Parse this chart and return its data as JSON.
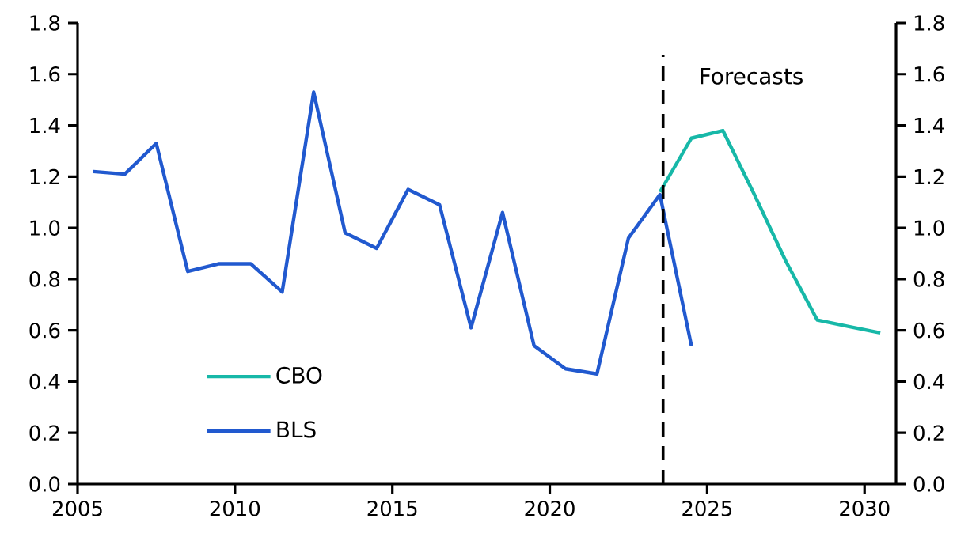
{
  "chart_data": {
    "type": "line",
    "series": [
      {
        "name": "CBO",
        "color": "#17b8a8",
        "x": [
          2023.5,
          2024.5,
          2025.5,
          2026.5,
          2027.5,
          2028.5,
          2029.5,
          2030.5
        ],
        "values": [
          1.14,
          1.35,
          1.38,
          1.13,
          0.87,
          0.64,
          0.615,
          0.59
        ]
      },
      {
        "name": "BLS",
        "color": "#2159cf",
        "x": [
          2005.5,
          2006.5,
          2007.5,
          2008.5,
          2009.5,
          2010.5,
          2011.5,
          2012.5,
          2013.5,
          2014.5,
          2015.5,
          2016.5,
          2017.5,
          2018.5,
          2019.5,
          2020.5,
          2021.5,
          2022.5,
          2023.5,
          2024.5
        ],
        "values": [
          1.22,
          1.21,
          1.33,
          0.83,
          0.86,
          0.86,
          0.75,
          1.53,
          0.98,
          0.92,
          1.15,
          1.09,
          0.61,
          1.06,
          0.54,
          0.45,
          0.43,
          0.96,
          1.13,
          0.54
        ]
      }
    ],
    "xlim": [
      2005,
      2031
    ],
    "xticks": [
      2005,
      2010,
      2015,
      2020,
      2025,
      2030
    ],
    "ylim": [
      0,
      1.8
    ],
    "yticks": [
      {
        "value": 0,
        "label": "0.0"
      },
      0.2,
      0.4,
      0.6,
      0.8,
      {
        "value": 1,
        "label": "1.0"
      },
      1.2,
      1.4,
      1.6,
      1.8
    ],
    "y2lim": [
      0,
      1.8
    ],
    "y2ticks": [
      {
        "value": 0,
        "label": "0.0"
      },
      0.2,
      0.4,
      0.6,
      0.8,
      {
        "value": 1,
        "label": "1.0"
      },
      1.2,
      1.4,
      1.6,
      1.8
    ],
    "ref_lines": [
      {
        "axis": "x",
        "value": 2023.6,
        "label": "Forecasts",
        "color": "#000000",
        "line_style": "dashed"
      }
    ],
    "legend": "bottom left",
    "grid": false,
    "marker": "none",
    "line_style": "solid"
  }
}
